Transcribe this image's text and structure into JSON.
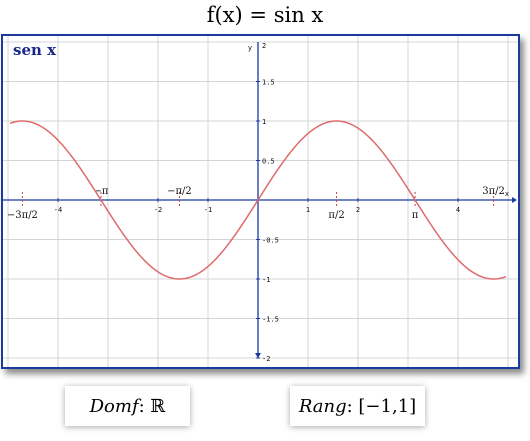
{
  "title": "f(x) = sin x",
  "chart_data": {
    "type": "line",
    "title": "sen x",
    "function": "sin",
    "xlim": [
      -5,
      5
    ],
    "ylim": [
      -2,
      2
    ],
    "grid": true,
    "xlabel": "x",
    "ylabel": "y",
    "x_ticks": [
      -4,
      -2,
      -1,
      1,
      2,
      4
    ],
    "x_tick_labels": [
      "-4",
      "-2",
      "-1",
      "1",
      "2",
      "4"
    ],
    "y_ticks": [
      1.5,
      1,
      0.5,
      -0.5,
      -1,
      -1.5,
      -2
    ],
    "y_tick_labels": [
      "1.5",
      "1",
      "0.5",
      "-0.5",
      "-1",
      "-1.5",
      "-2"
    ],
    "y_top_label": "2",
    "pi_annotations": [
      {
        "x": -4.712,
        "label": "−3π/2",
        "side": "below"
      },
      {
        "x": -3.1416,
        "label": "−π",
        "side": "above"
      },
      {
        "x": -1.5708,
        "label": "−π/2",
        "side": "above"
      },
      {
        "x": 1.5708,
        "label": "π/2",
        "side": "below"
      },
      {
        "x": 3.1416,
        "label": "π",
        "side": "below"
      },
      {
        "x": 4.712,
        "label": "3π/2",
        "side": "above"
      }
    ],
    "series": [
      {
        "name": "sen x",
        "color": "#e06a6a"
      }
    ]
  },
  "captions": {
    "domain_label": "Domf",
    "domain_value": ": ℝ",
    "range_label": "Rang",
    "range_value": ": [−1,1]"
  },
  "colors": {
    "axis": "#1a3aa0",
    "grid": "#d4d4d4",
    "curve": "#e06a6a",
    "pi_tick": "#d04040"
  }
}
